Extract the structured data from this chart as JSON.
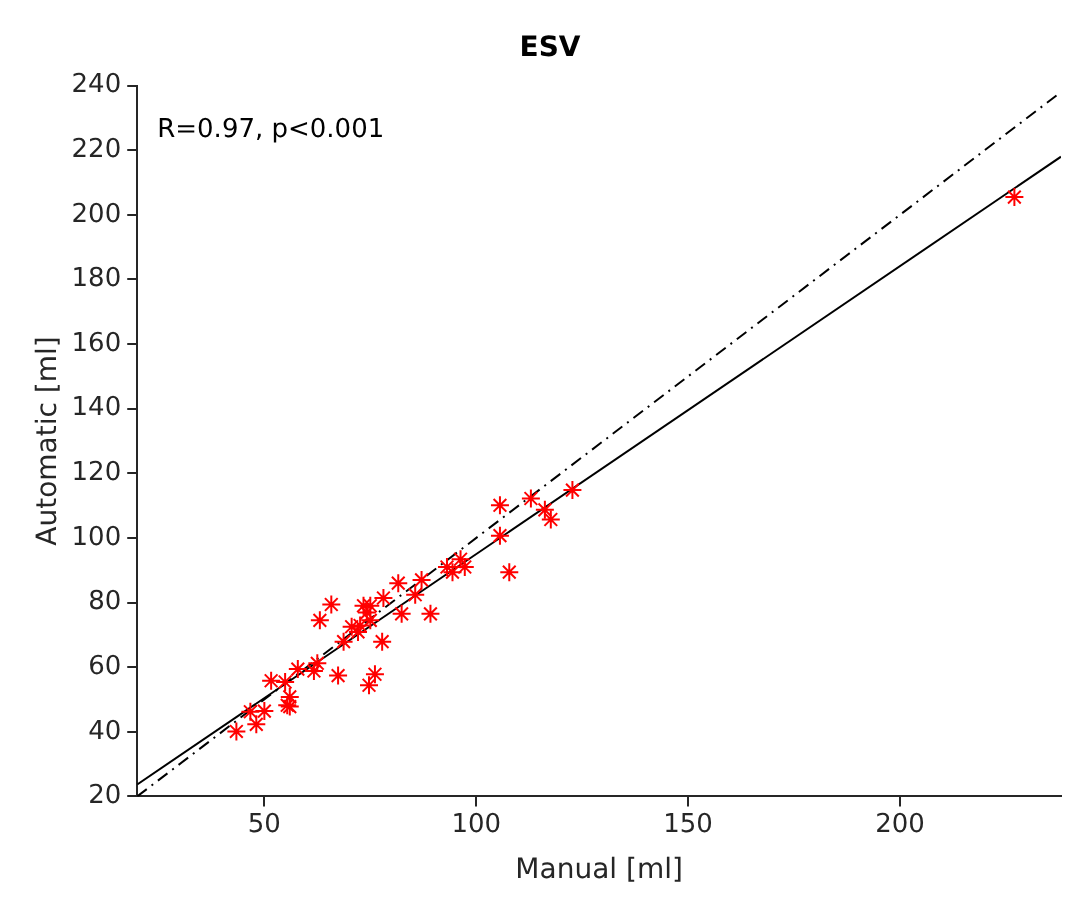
{
  "chart_data": {
    "type": "scatter",
    "title": "ESV",
    "xlabel": "Manual [ml]",
    "ylabel": "Automatic [ml]",
    "annotations": [
      "R=0.97, p<0.001"
    ],
    "xlim": [
      20,
      238
    ],
    "xticks": [
      50,
      100,
      150,
      200
    ],
    "ylim": [
      20,
      240
    ],
    "yticks": [
      20,
      40,
      60,
      80,
      100,
      120,
      140,
      160,
      180,
      200,
      220,
      240
    ],
    "grid": false,
    "legend": false,
    "series": [
      {
        "type": "scatter",
        "color": "#ff0000",
        "marker": "cross",
        "x": [
          43.4,
          46.7,
          48.1,
          50.0,
          51.6,
          54.9,
          56.0,
          55.4,
          56.0,
          57.9,
          61.7,
          62.5,
          63.1,
          65.8,
          67.4,
          68.7,
          70.6,
          72.1,
          72.6,
          73.4,
          74.2,
          74.7,
          75.0,
          75.0,
          76.1,
          77.8,
          78.1,
          81.6,
          82.4,
          85.6,
          87.1,
          89.2,
          93.1,
          94.4,
          96.3,
          97.3,
          105.6,
          105.6,
          107.8,
          112.9,
          116.2,
          117.6,
          122.7,
          227.0
        ],
        "values": [
          40.1,
          46.2,
          42.3,
          46.4,
          55.8,
          55.4,
          50.8,
          48.2,
          47.8,
          59.4,
          58.8,
          61.2,
          74.5,
          79.4,
          57.4,
          67.9,
          72.5,
          70.9,
          72.9,
          79.0,
          76.9,
          54.4,
          79.0,
          74.5,
          57.8,
          67.9,
          81.4,
          86.0,
          76.5,
          82.4,
          87.0,
          76.5,
          91.0,
          89.4,
          93.4,
          91.0,
          110.1,
          100.7,
          89.4,
          112.2,
          108.7,
          105.7,
          114.8,
          205.5
        ]
      },
      {
        "type": "line",
        "color": "#000000",
        "line_style": "dashed",
        "marker": "none",
        "x": [
          20,
          238
        ],
        "values": [
          20,
          238
        ]
      },
      {
        "type": "line",
        "color": "#000000",
        "line_style": "solid",
        "marker": "none",
        "x": [
          20,
          238
        ],
        "values": [
          23.7,
          218
        ]
      }
    ]
  }
}
